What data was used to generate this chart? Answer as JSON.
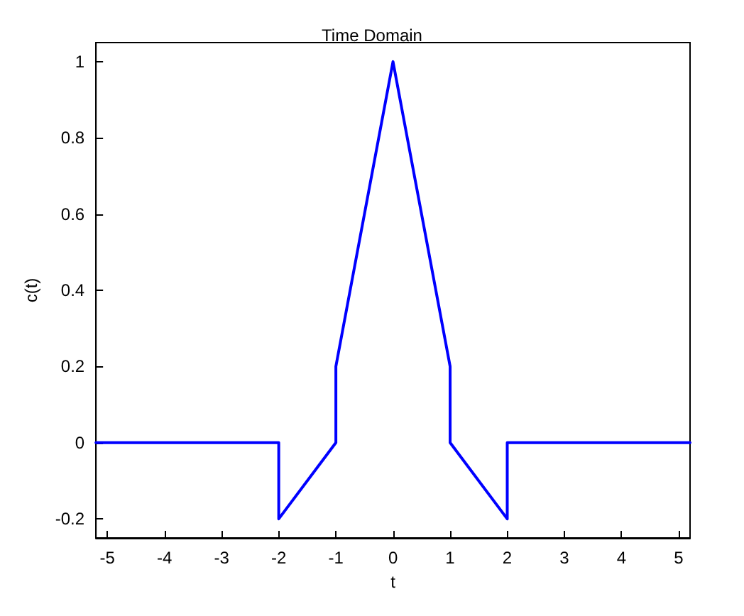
{
  "chart_data": {
    "type": "line",
    "title": "Time Domain",
    "xlabel": "t",
    "ylabel": "c(t)",
    "series": [
      {
        "color": "#0000ff",
        "x": [
          -5.2,
          -2,
          -2,
          -1,
          -1,
          0,
          1,
          1,
          2,
          2,
          5.2
        ],
        "values": [
          0,
          0,
          -0.2,
          0,
          0.2,
          1,
          0.2,
          0,
          -0.2,
          0,
          0
        ]
      }
    ],
    "xlim": [
      -5.2,
      5.2
    ],
    "xticks": [
      -5,
      -4,
      -3,
      -2,
      -1,
      0,
      1,
      2,
      3,
      4,
      5
    ],
    "ylim": [
      -0.25,
      1.05
    ],
    "yticks": [
      -0.2,
      0,
      0.2,
      0.4,
      0.6,
      0.8,
      1
    ],
    "marker": "none",
    "line_style": "solid"
  }
}
